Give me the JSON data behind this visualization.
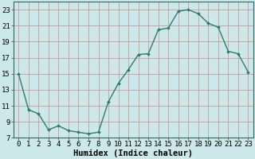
{
  "x": [
    0,
    1,
    2,
    3,
    4,
    5,
    6,
    7,
    8,
    9,
    10,
    11,
    12,
    13,
    14,
    15,
    16,
    17,
    18,
    19,
    20,
    21,
    22,
    23
  ],
  "y": [
    15,
    10.5,
    10,
    8,
    8.5,
    7.9,
    7.7,
    7.5,
    7.7,
    11.5,
    13.8,
    15.5,
    17.4,
    17.5,
    20.5,
    20.7,
    22.8,
    23.0,
    22.5,
    21.3,
    20.8,
    17.8,
    17.5,
    15.2
  ],
  "line_color": "#2d7d6e",
  "marker": "D",
  "marker_size": 2.0,
  "bg_color": "#cce8e8",
  "grid_color": "#aacccc",
  "grid_color_major": "#cc9999",
  "xlabel": "Humidex (Indice chaleur)",
  "xlim": [
    -0.5,
    23.5
  ],
  "ylim": [
    7,
    24
  ],
  "yticks": [
    7,
    9,
    11,
    13,
    15,
    17,
    19,
    21,
    23
  ],
  "xticks": [
    0,
    1,
    2,
    3,
    4,
    5,
    6,
    7,
    8,
    9,
    10,
    11,
    12,
    13,
    14,
    15,
    16,
    17,
    18,
    19,
    20,
    21,
    22,
    23
  ],
  "xtick_labels": [
    "0",
    "1",
    "2",
    "3",
    "4",
    "5",
    "6",
    "7",
    "8",
    "9",
    "10",
    "11",
    "12",
    "13",
    "14",
    "15",
    "16",
    "17",
    "18",
    "19",
    "20",
    "21",
    "22",
    "23"
  ],
  "ytick_labels": [
    "7",
    "9",
    "11",
    "13",
    "15",
    "17",
    "19",
    "21",
    "23"
  ],
  "tick_fontsize": 6.5,
  "xlabel_fontsize": 7.5,
  "line_width": 1.0
}
